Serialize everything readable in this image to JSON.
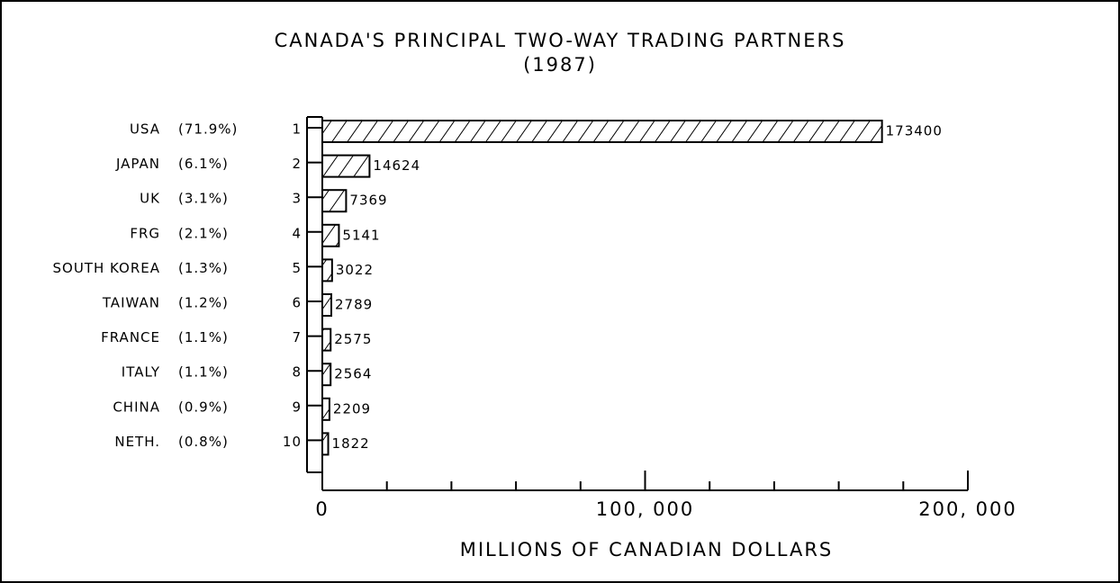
{
  "chart_data": {
    "type": "barh",
    "title": "CANADA'S PRINCIPAL TWO-WAY TRADING PARTNERS",
    "subtitle": "(1987)",
    "xlabel": "MILLIONS OF CANADIAN DOLLARS",
    "categories": [
      "USA",
      "JAPAN",
      "UK",
      "FRG",
      "SOUTH KOREA",
      "TAIWAN",
      "FRANCE",
      "ITALY",
      "CHINA",
      "NETH."
    ],
    "shares": [
      "(71.9%)",
      "(6.1%)",
      "(3.1%)",
      "(2.1%)",
      "(1.3%)",
      "(1.2%)",
      "(1.1%)",
      "(1.1%)",
      "(0.9%)",
      "(0.8%)"
    ],
    "ranks": [
      1,
      2,
      3,
      4,
      5,
      6,
      7,
      8,
      9,
      10
    ],
    "values": [
      173400,
      14624,
      7369,
      5141,
      3022,
      2789,
      2575,
      2564,
      2209,
      1822
    ],
    "color": "#000000",
    "xlim": [
      0,
      200000
    ],
    "xticks": [
      0,
      {
        "value": 100000,
        "label": "100, 000"
      },
      {
        "value": 200000,
        "label": "200, 000"
      }
    ],
    "xminorticks": [
      20000,
      40000,
      60000,
      80000,
      120000,
      140000,
      160000,
      180000
    ]
  }
}
